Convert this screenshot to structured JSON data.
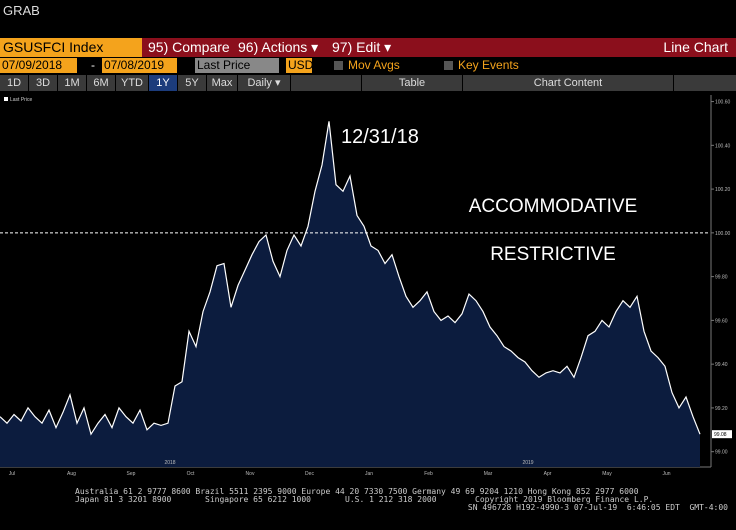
{
  "app": {
    "title": "GRAB"
  },
  "toolbar": {
    "ticker": "GSUSFCI Index",
    "menu": [
      "95) Compare",
      "96) Actions ▾",
      "97) Edit ▾"
    ],
    "view": "Line Chart",
    "start_date": "07/09/2018",
    "dash": "-",
    "end_date": "07/08/2019",
    "field": "Last Price",
    "currency": "USD",
    "mov_avgs": "Mov Avgs",
    "key_events": "Key Events",
    "ranges": [
      "1D",
      "3D",
      "1M",
      "6M",
      "YTD",
      "1Y",
      "5Y",
      "Max",
      "Daily ▾"
    ],
    "table": "Table",
    "chart_content": "Chart Content"
  },
  "chart_data": {
    "type": "area",
    "annotations": [
      "12/31/18",
      "ACCOMMODATIVE",
      "RESTRICTIVE"
    ],
    "reference_line": 100,
    "month_labels": [
      "Jul",
      "Aug",
      "Sep",
      "Oct",
      "Nov",
      "Dec",
      "Jan",
      "Feb",
      "Mar",
      "Apr",
      "May",
      "Jun"
    ],
    "year_labels": [
      "2018",
      "2019"
    ],
    "series": [
      {
        "name": "Last Price",
        "color": "#ffffff",
        "fill": "#0c1c3e",
        "values": [
          99.16,
          99.13,
          99.17,
          99.14,
          99.2,
          99.16,
          99.13,
          99.19,
          99.11,
          99.18,
          99.26,
          99.13,
          99.2,
          99.08,
          99.13,
          99.17,
          99.11,
          99.2,
          99.16,
          99.13,
          99.19,
          99.1,
          99.13,
          99.12,
          99.13,
          99.3,
          99.32,
          99.55,
          99.48,
          99.64,
          99.73,
          99.85,
          99.86,
          99.66,
          99.76,
          99.83,
          99.9,
          99.96,
          99.99,
          99.87,
          99.8,
          99.92,
          99.99,
          99.94,
          100.03,
          100.19,
          100.31,
          100.51,
          100.22,
          100.19,
          100.26,
          100.08,
          100.03,
          99.94,
          99.92,
          99.86,
          99.9,
          99.8,
          99.71,
          99.66,
          99.69,
          99.73,
          99.64,
          99.6,
          99.62,
          99.59,
          99.63,
          99.72,
          99.69,
          99.64,
          99.57,
          99.53,
          99.48,
          99.46,
          99.43,
          99.41,
          99.37,
          99.34,
          99.36,
          99.37,
          99.36,
          99.39,
          99.34,
          99.43,
          99.53,
          99.55,
          99.6,
          99.57,
          99.64,
          99.69,
          99.66,
          99.71,
          99.55,
          99.46,
          99.43,
          99.39,
          99.27,
          99.2,
          99.25,
          99.16,
          99.08
        ]
      }
    ],
    "ylim": [
      98.93,
      100.63
    ],
    "yticks": [
      {
        "value": 100.6,
        "label": "100.60"
      },
      {
        "value": 100.4,
        "label": "100.40"
      },
      {
        "value": 100.2,
        "label": "100.20"
      },
      {
        "value": 100,
        "label": "100.00"
      },
      {
        "value": 99.8,
        "label": "99.80"
      },
      {
        "value": 99.6,
        "label": "99.60"
      },
      {
        "value": 99.4,
        "label": "99.40"
      },
      {
        "value": 99.2,
        "label": "99.20"
      },
      {
        "value": 99,
        "label": "99.00"
      }
    ]
  },
  "footer": [
    "Australia 61 2 9777 8600 Brazil 5511 2395 9000 Europe 44 20 7330 7500 Germany 49 69 9204 1210 Hong Kong 852 2977 6000",
    "Japan 81 3 3201 8900",
    "Singapore 65 6212 1000",
    "U.S. 1 212 318 2000",
    "Copyright 2019 Bloomberg Finance L.P.",
    "SN 496728 H192-4990-3 07-Jul-19  6:46:05 EDT  GMT-4:00"
  ]
}
